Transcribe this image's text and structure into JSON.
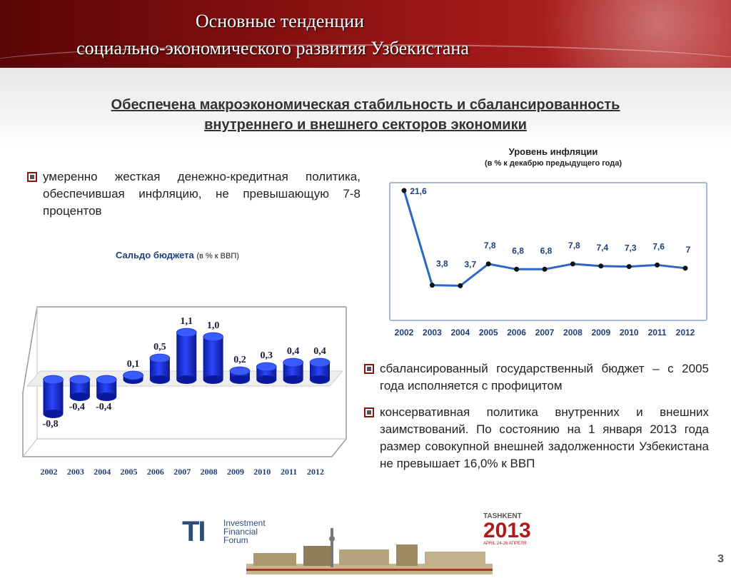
{
  "header": {
    "title_line1": "Основные тенденции",
    "title_line2": "социально-экономического развития Узбекистана"
  },
  "subtitle": {
    "line1": "Обеспечена макроэкономическая стабильность и сбалансированность",
    "line2": "внутреннего и внешнего секторов экономики"
  },
  "bullets": {
    "left": "умеренно жесткая денежно-кредитная политика, обеспечившая инфляцию, не превышающую 7-8 процентов",
    "right1": "сбалансированный государственный бюджет – с 2005 года исполняется с профицитом",
    "right2": "консервативная политика внутренних и внешних заимствований. По состоянию на 1 января 2013 года размер совокупной внешней задолженности Узбекистана не превышает 16,0% к ВВП"
  },
  "budget_caption": {
    "bold": "Сальдо бюджета",
    "small": "(в % к ВВП)"
  },
  "inflation_caption": {
    "title": "Уровень инфляции",
    "sub": "(в % к декабрю предыдущего года)"
  },
  "footer": {
    "logo_mark": "TI",
    "logo_line1": "Investment",
    "logo_line2": "Financial",
    "logo_line3": "Forum",
    "tashkent_label": "TASHKENT",
    "tashkent_year": "2013",
    "tashkent_dates": "APRIL 24-26 АПРЕЛЯ",
    "page_number": "3"
  },
  "colors": {
    "accent": "#8c1212",
    "bar_blue": "#1f35d6",
    "line_blue": "#2b67c9",
    "text_dark": "#222222"
  },
  "chart_data": [
    {
      "type": "bar",
      "title": "Сальдо бюджета",
      "categories": [
        "2002",
        "2003",
        "2004",
        "2005",
        "2006",
        "2007",
        "2008",
        "2009",
        "2010",
        "2011",
        "2012"
      ],
      "values": [
        -0.8,
        -0.4,
        -0.4,
        0.1,
        0.5,
        1.1,
        1.0,
        0.2,
        0.3,
        0.4,
        0.4
      ],
      "labels": [
        "-0,8",
        "-0,4",
        "-0,4",
        "0,1",
        "0,5",
        "1,1",
        "1,0",
        "0,2",
        "0,3",
        "0,4",
        "0,4"
      ],
      "ylim": [
        -1.0,
        1.3
      ],
      "grid": false
    },
    {
      "type": "line",
      "title": "Уровень инфляции",
      "categories": [
        "2002",
        "2003",
        "2004",
        "2005",
        "2006",
        "2007",
        "2008",
        "2009",
        "2010",
        "2011",
        "2012"
      ],
      "values": [
        21.6,
        3.8,
        3.7,
        7.8,
        6.8,
        6.8,
        7.8,
        7.4,
        7.3,
        7.6,
        7.0
      ],
      "labels": [
        "21,6",
        "3,8",
        "3,7",
        "7,8",
        "6,8",
        "6,8",
        "7,8",
        "7,4",
        "7,3",
        "7,6",
        "7"
      ],
      "ylim": [
        0,
        25
      ],
      "grid": false
    }
  ]
}
